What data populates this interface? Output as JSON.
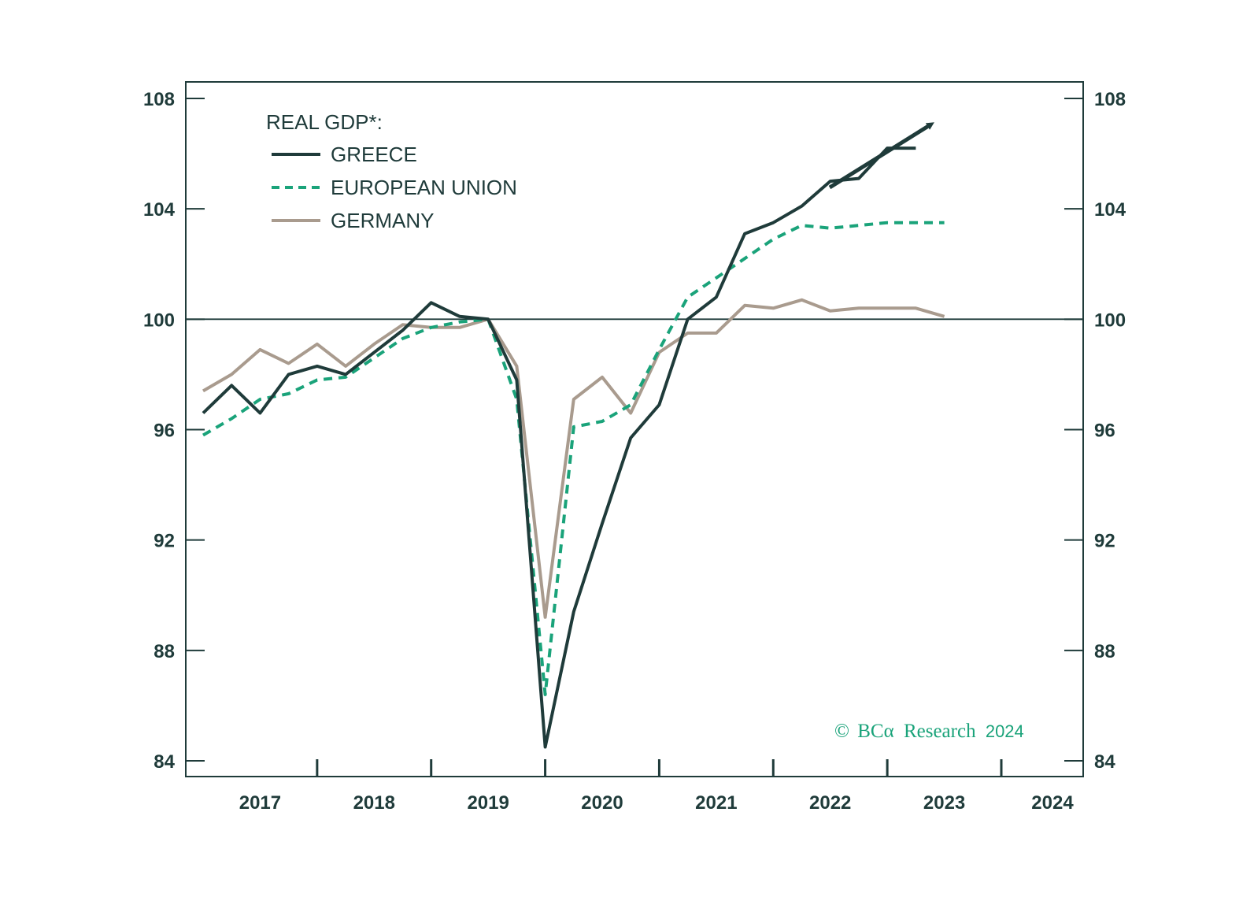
{
  "chart_data": {
    "type": "line",
    "title": "",
    "xlabel": "",
    "ylabel": "",
    "legend_title": "REAL GDP*:",
    "legend_placement": "top-left",
    "ylim": [
      84,
      108
    ],
    "yticks": [
      84,
      88,
      92,
      96,
      100,
      104,
      108
    ],
    "ytick_labels": [
      "84",
      "88",
      "92",
      "96",
      "100",
      "104",
      "108"
    ],
    "xlim": [
      2016.87,
      2024.25
    ],
    "xtick_labels": [
      "2017",
      "2018",
      "2019",
      "2020",
      "2021",
      "2022",
      "2023",
      "2024"
    ],
    "reference_line": 100,
    "grid": false,
    "x": [
      2017.0,
      2017.25,
      2017.5,
      2017.75,
      2018.0,
      2018.25,
      2018.5,
      2018.75,
      2019.0,
      2019.25,
      2019.5,
      2019.75,
      2020.0,
      2020.25,
      2020.5,
      2020.75,
      2021.0,
      2021.25,
      2021.5,
      2021.75,
      2022.0,
      2022.25,
      2022.5,
      2022.75,
      2023.0,
      2023.25,
      2023.5,
      2023.75
    ],
    "series": [
      {
        "name": "GREECE",
        "color": "#1f3b3a",
        "dash": "solid",
        "values": [
          96.6,
          97.6,
          96.6,
          98.0,
          98.3,
          98.0,
          98.8,
          99.6,
          100.6,
          100.1,
          100.0,
          97.8,
          84.5,
          89.4,
          92.6,
          95.7,
          96.9,
          100.0,
          100.8,
          103.1,
          103.5,
          104.1,
          105.0,
          105.1,
          106.2,
          106.2,
          null,
          null
        ]
      },
      {
        "name": "EUROPEAN UNION",
        "color": "#1aa37a",
        "dash": "dashed",
        "values": [
          95.8,
          96.4,
          97.1,
          97.3,
          97.8,
          97.9,
          98.6,
          99.3,
          99.7,
          99.9,
          100.0,
          97.1,
          86.4,
          96.1,
          96.3,
          96.9,
          98.9,
          100.8,
          101.5,
          102.2,
          102.9,
          103.4,
          103.3,
          103.4,
          103.5,
          103.5,
          103.5,
          null
        ]
      },
      {
        "name": "GERMANY",
        "color": "#a99b8e",
        "dash": "solid",
        "values": [
          97.4,
          98.0,
          98.9,
          98.4,
          99.1,
          98.3,
          99.1,
          99.8,
          99.7,
          99.7,
          100.0,
          98.3,
          89.2,
          97.1,
          97.9,
          96.6,
          98.8,
          99.5,
          99.5,
          100.5,
          100.4,
          100.7,
          100.3,
          100.4,
          100.4,
          100.4,
          100.1,
          null
        ]
      }
    ],
    "annotations": [
      "upward arrow above GREECE series"
    ]
  },
  "credit": {
    "copyright": "©",
    "brand": "BCα",
    "text": "Research",
    "year": "2024",
    "color": "#1aa37a"
  },
  "icons": {
    "trend": "up-right-arrow-icon"
  },
  "colors": {
    "axis": "#1f3b3a",
    "greece": "#1f3b3a",
    "eu": "#1aa37a",
    "germany": "#a99b8e"
  }
}
